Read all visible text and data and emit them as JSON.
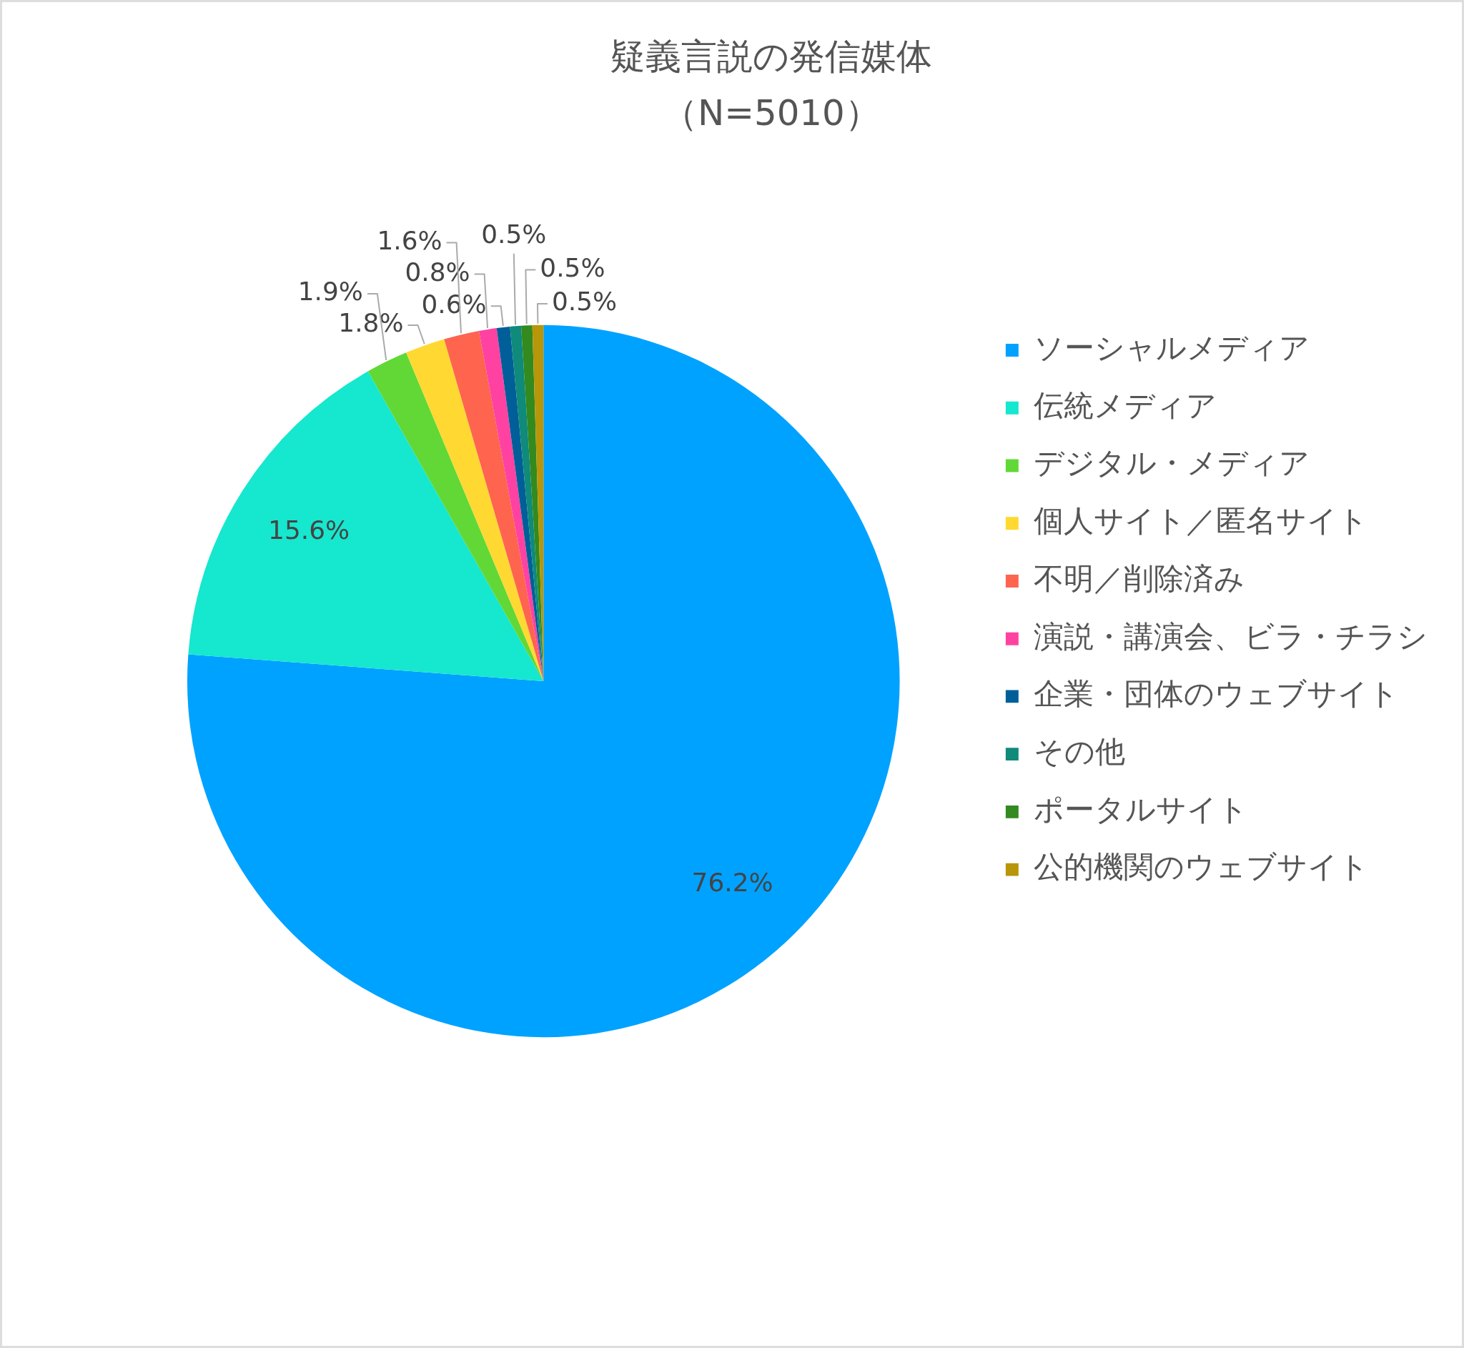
{
  "chart_data": {
    "type": "pie",
    "title": "疑義言説の発信媒体",
    "subtitle": "（N=5010）",
    "categories": [
      "ソーシャルメディア",
      "伝統メディア",
      "デジタル・メディア",
      "個人サイト／匿名サイト",
      "不明／削除済み",
      "演説・講演会、ビラ・チラシ",
      "企業・団体のウェブサイト",
      "その他",
      "ポータルサイト",
      "公的機関のウェブサイト"
    ],
    "values": [
      76.2,
      15.6,
      1.9,
      1.8,
      1.6,
      0.8,
      0.6,
      0.5,
      0.5,
      0.5
    ],
    "colors": [
      "#00a2ff",
      "#16e7cf",
      "#61d836",
      "#ffd932",
      "#ff644e",
      "#ff42a1",
      "#005e99",
      "#0f8a7b",
      "#338a1e",
      "#b8960a"
    ],
    "value_labels": [
      "76.2%",
      "15.6%",
      "1.9%",
      "1.8%",
      "1.6%",
      "0.8%",
      "0.6%",
      "0.5%",
      "0.5%",
      "0.5%"
    ],
    "legend": "right"
  }
}
